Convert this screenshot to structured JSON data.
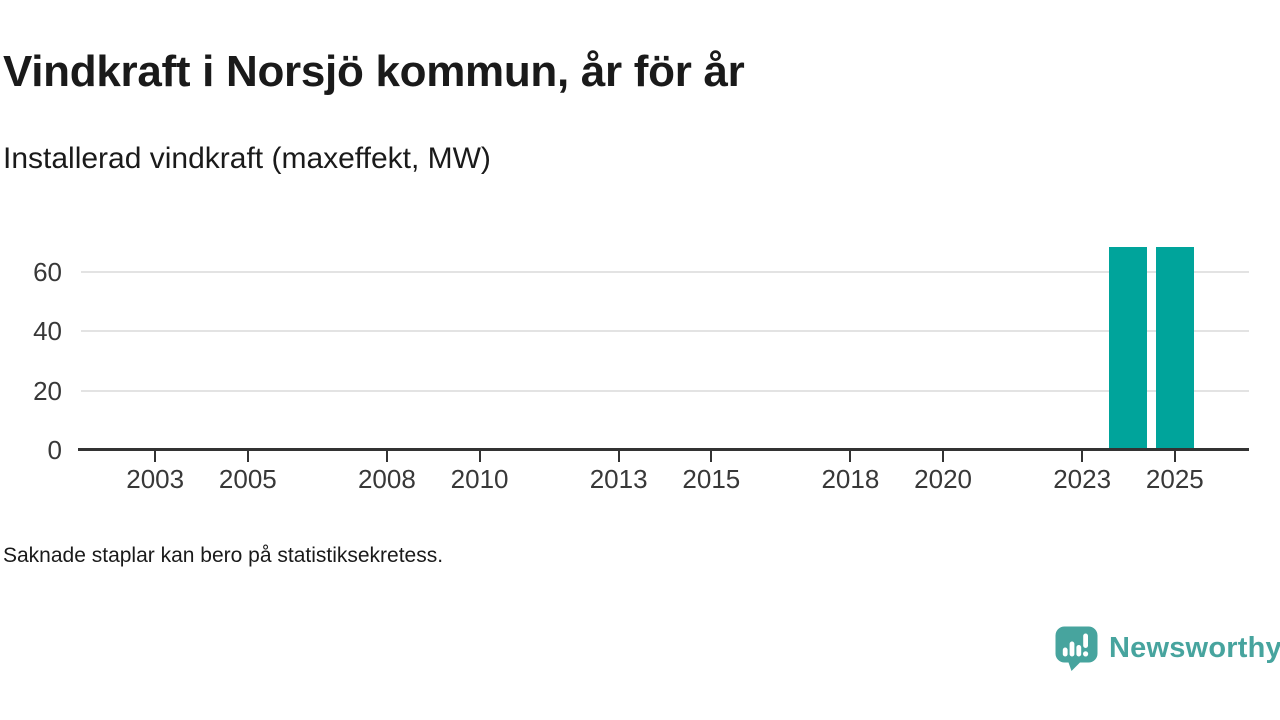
{
  "header": {
    "title": "Vindkraft i Norsjö kommun, år för år",
    "subtitle": "Installerad vindkraft (maxeffekt, MW)"
  },
  "footer": {
    "note": "Saknade staplar kan bero på statistiksekretess.",
    "brand": "Newsworthy"
  },
  "colors": {
    "bar": "#00a49b",
    "brand": "#47a49e",
    "axis": "#333333",
    "grid": "#e3e3e3",
    "text": "#1a1a1a",
    "tick_label": "#383838"
  },
  "chart_data": {
    "type": "bar",
    "title": "Vindkraft i Norsjö kommun, år för år",
    "subtitle": "Installerad vindkraft (maxeffekt, MW)",
    "note": "Saknade staplar kan bero på statistiksekretess.",
    "unit": "MW",
    "bars": [
      {
        "year": 2024,
        "value": 68
      },
      {
        "year": 2025,
        "value": 68
      }
    ],
    "xticks": [
      2003,
      2005,
      2008,
      2010,
      2013,
      2015,
      2018,
      2020,
      2023,
      2025
    ],
    "yticks": [
      0,
      20,
      40,
      60
    ],
    "xlim": [
      2001.4,
      2026.6
    ],
    "ylim": [
      0,
      70
    ],
    "grid": "horizontal",
    "legend": "none",
    "bar_color": "#00a49b"
  }
}
